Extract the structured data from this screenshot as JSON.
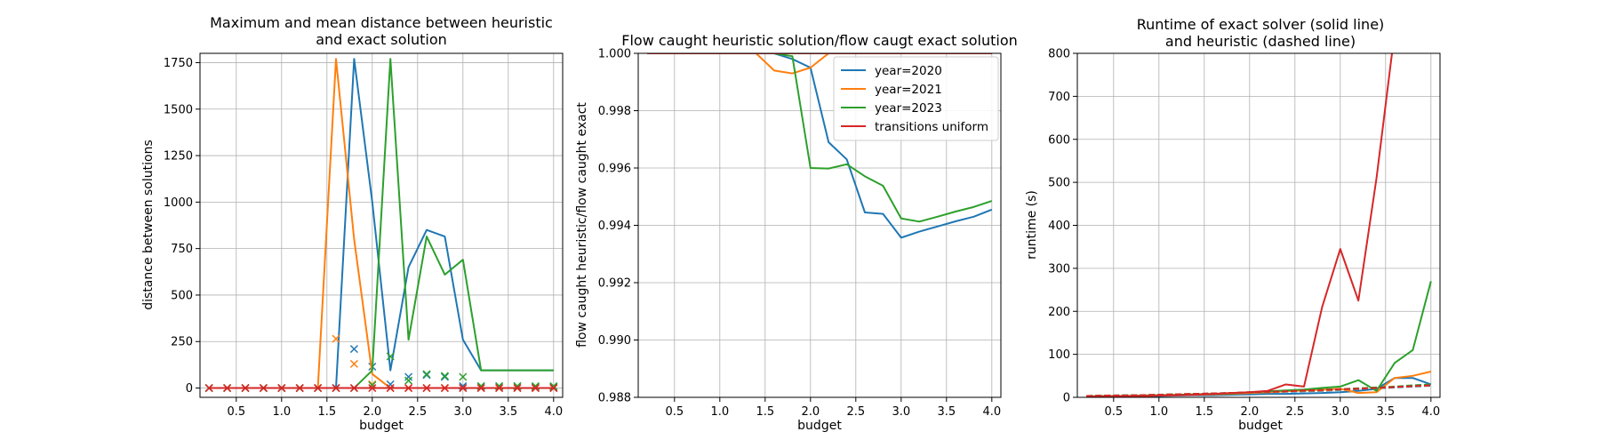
{
  "chart_data": [
    {
      "type": "line",
      "title": "Maximum and mean distance between heuristic\nand exact solution",
      "xlabel": "budget",
      "ylabel": "distance between solutions",
      "xlim": [
        0.1,
        4.1
      ],
      "ylim": [
        -50,
        1800
      ],
      "grid": true,
      "xticks": [
        0.5,
        1.0,
        1.5,
        2.0,
        2.5,
        3.0,
        3.5,
        4.0
      ],
      "xtick_labels": [
        "0.5",
        "1.0",
        "1.5",
        "2.0",
        "2.5",
        "3.0",
        "3.5",
        "4.0"
      ],
      "yticks": [
        0,
        250,
        500,
        750,
        1000,
        1250,
        1500,
        1750
      ],
      "ytick_labels": [
        "0",
        "250",
        "500",
        "750",
        "1000",
        "1250",
        "1500",
        "1750"
      ],
      "x": [
        0.2,
        0.4,
        0.6,
        0.8,
        1.0,
        1.2,
        1.4,
        1.6,
        1.8,
        2.0,
        2.2,
        2.4,
        2.6,
        2.8,
        3.0,
        3.2,
        3.4,
        3.6,
        3.8,
        4.0
      ],
      "series": [
        {
          "color": "#1f77b4",
          "values": [
            0,
            0,
            0,
            0,
            0,
            0,
            0,
            0,
            1770,
            1000,
            95,
            650,
            850,
            815,
            260,
            95,
            95,
            95,
            95,
            95
          ],
          "markers": [
            0,
            0,
            0,
            0,
            0,
            0,
            0,
            0,
            210,
            115,
            20,
            60,
            70,
            60,
            10,
            10,
            10,
            10,
            5,
            5
          ]
        },
        {
          "color": "#ff7f0e",
          "values": [
            0,
            0,
            0,
            0,
            0,
            0,
            0,
            1770,
            800,
            75,
            0,
            0,
            0,
            0,
            0,
            0,
            0,
            0,
            0,
            0
          ],
          "markers": [
            0,
            0,
            0,
            0,
            0,
            0,
            0,
            265,
            130,
            20,
            0,
            0,
            0,
            0,
            0,
            0,
            0,
            0,
            0,
            0
          ]
        },
        {
          "color": "#2ca02c",
          "values": [
            0,
            0,
            0,
            0,
            0,
            0,
            0,
            0,
            0,
            95,
            1770,
            260,
            815,
            610,
            690,
            95,
            95,
            95,
            95,
            95
          ],
          "markers": [
            0,
            0,
            0,
            0,
            0,
            0,
            0,
            0,
            0,
            15,
            170,
            40,
            75,
            65,
            60,
            10,
            10,
            10,
            10,
            10
          ]
        },
        {
          "color": "#d62728",
          "values": [
            0,
            0,
            0,
            0,
            0,
            0,
            0,
            0,
            0,
            0,
            0,
            0,
            0,
            0,
            0,
            0,
            0,
            0,
            0,
            0
          ],
          "markers": [
            0,
            0,
            0,
            0,
            0,
            0,
            0,
            0,
            0,
            0,
            0,
            0,
            0,
            0,
            0,
            0,
            0,
            0,
            0,
            0
          ]
        }
      ]
    },
    {
      "type": "line",
      "title": "Flow caught heuristic solution/flow caugt exact solution",
      "xlabel": "budget",
      "ylabel": "flow caught heuristic/flow caught exact",
      "xlim": [
        0.1,
        4.1
      ],
      "ylim": [
        0.988,
        1.0
      ],
      "grid": true,
      "xticks": [
        0.5,
        1.0,
        1.5,
        2.0,
        2.5,
        3.0,
        3.5,
        4.0
      ],
      "xtick_labels": [
        "0.5",
        "1.0",
        "1.5",
        "2.0",
        "2.5",
        "3.0",
        "3.5",
        "4.0"
      ],
      "yticks": [
        0.988,
        0.99,
        0.992,
        0.994,
        0.996,
        0.998,
        1.0
      ],
      "ytick_labels": [
        "0.988",
        "0.990",
        "0.992",
        "0.994",
        "0.996",
        "0.998",
        "1.000"
      ],
      "x": [
        0.2,
        0.4,
        0.6,
        0.8,
        1.0,
        1.2,
        1.4,
        1.6,
        1.8,
        2.0,
        2.2,
        2.4,
        2.6,
        2.8,
        3.0,
        3.2,
        3.4,
        3.6,
        3.8,
        4.0
      ],
      "legend": {
        "position": "top-right",
        "entries": [
          "year=2020",
          "year=2021",
          "year=2023",
          "transitions uniform"
        ]
      },
      "series": [
        {
          "name": "year=2020",
          "color": "#1f77b4",
          "values": [
            1.0,
            1.0,
            1.0,
            1.0,
            1.0,
            1.0,
            1.0,
            1.0,
            0.9998,
            0.9995,
            0.9969,
            0.9963,
            0.99445,
            0.9944,
            0.99357,
            0.99378,
            0.99396,
            0.99414,
            0.9943,
            0.99455
          ]
        },
        {
          "name": "year=2021",
          "color": "#ff7f0e",
          "values": [
            1.0,
            1.0,
            1.0,
            1.0,
            1.0,
            1.0,
            1.0,
            0.9994,
            0.9993,
            0.9995,
            1.0,
            1.0,
            1.0,
            1.0,
            1.0,
            1.0,
            1.0,
            1.0,
            1.0,
            1.0
          ]
        },
        {
          "name": "year=2023",
          "color": "#2ca02c",
          "values": [
            1.0,
            1.0,
            1.0,
            1.0,
            1.0,
            1.0,
            1.0,
            1.0,
            0.9999,
            0.996,
            0.99598,
            0.99613,
            0.99571,
            0.99538,
            0.99424,
            0.99413,
            0.9943,
            0.99448,
            0.99464,
            0.99485
          ]
        },
        {
          "name": "transitions uniform",
          "color": "#d62728",
          "values": [
            1.0,
            1.0,
            1.0,
            1.0,
            1.0,
            1.0,
            1.0,
            1.0,
            1.0,
            1.0,
            1.0,
            1.0,
            1.0,
            1.0,
            1.0,
            1.0,
            1.0,
            1.0,
            1.0,
            1.0
          ]
        }
      ]
    },
    {
      "type": "line",
      "title": "Runtime of exact solver (solid line)\nand heuristic (dashed line)",
      "xlabel": "budget",
      "ylabel": "runtime (s)",
      "xlim": [
        0.1,
        4.1
      ],
      "ylim": [
        0,
        800
      ],
      "grid": true,
      "xticks": [
        0.5,
        1.0,
        1.5,
        2.0,
        2.5,
        3.0,
        3.5,
        4.0
      ],
      "xtick_labels": [
        "0.5",
        "1.0",
        "1.5",
        "2.0",
        "2.5",
        "3.0",
        "3.5",
        "4.0"
      ],
      "yticks": [
        0,
        100,
        200,
        300,
        400,
        500,
        600,
        700,
        800
      ],
      "ytick_labels": [
        "0",
        "100",
        "200",
        "300",
        "400",
        "500",
        "600",
        "700",
        "800"
      ],
      "x": [
        0.2,
        0.4,
        0.6,
        0.8,
        1.0,
        1.2,
        1.4,
        1.6,
        1.8,
        2.0,
        2.2,
        2.4,
        2.6,
        2.8,
        3.0,
        3.2,
        3.4,
        3.6,
        3.8,
        4.0
      ],
      "series": [
        {
          "color": "#1f77b4",
          "solid": [
            2,
            2,
            3,
            3,
            3,
            4,
            5,
            5,
            6,
            7,
            8,
            8,
            9,
            10,
            12,
            15,
            20,
            45,
            45,
            30
          ],
          "dashed": [
            3,
            4,
            4,
            5,
            6,
            7,
            8,
            9,
            10,
            11,
            12,
            13,
            14,
            15,
            17,
            19,
            21,
            23,
            25,
            27
          ]
        },
        {
          "color": "#ff7f0e",
          "solid": [
            2,
            2,
            3,
            3,
            4,
            5,
            6,
            7,
            8,
            10,
            12,
            14,
            16,
            18,
            20,
            10,
            12,
            45,
            50,
            60
          ],
          "dashed": [
            3,
            4,
            4,
            5,
            6,
            7,
            8,
            9,
            10,
            11,
            12,
            14,
            15,
            16,
            18,
            20,
            22,
            24,
            26,
            28
          ]
        },
        {
          "color": "#2ca02c",
          "solid": [
            2,
            3,
            3,
            4,
            5,
            6,
            7,
            8,
            9,
            12,
            14,
            16,
            18,
            22,
            25,
            40,
            15,
            80,
            110,
            270
          ],
          "dashed": [
            3,
            4,
            5,
            5,
            6,
            7,
            8,
            9,
            10,
            12,
            13,
            15,
            16,
            18,
            19,
            21,
            23,
            25,
            28,
            30
          ]
        },
        {
          "color": "#d62728",
          "solid": [
            2,
            2,
            3,
            3,
            4,
            5,
            6,
            8,
            10,
            12,
            15,
            30,
            25,
            210,
            345,
            225,
            510,
            850,
            850,
            850
          ],
          "dashed": [
            3,
            4,
            4,
            5,
            6,
            7,
            8,
            9,
            10,
            12,
            13,
            14,
            16,
            17,
            19,
            20,
            22,
            24,
            26,
            28
          ]
        }
      ]
    }
  ]
}
